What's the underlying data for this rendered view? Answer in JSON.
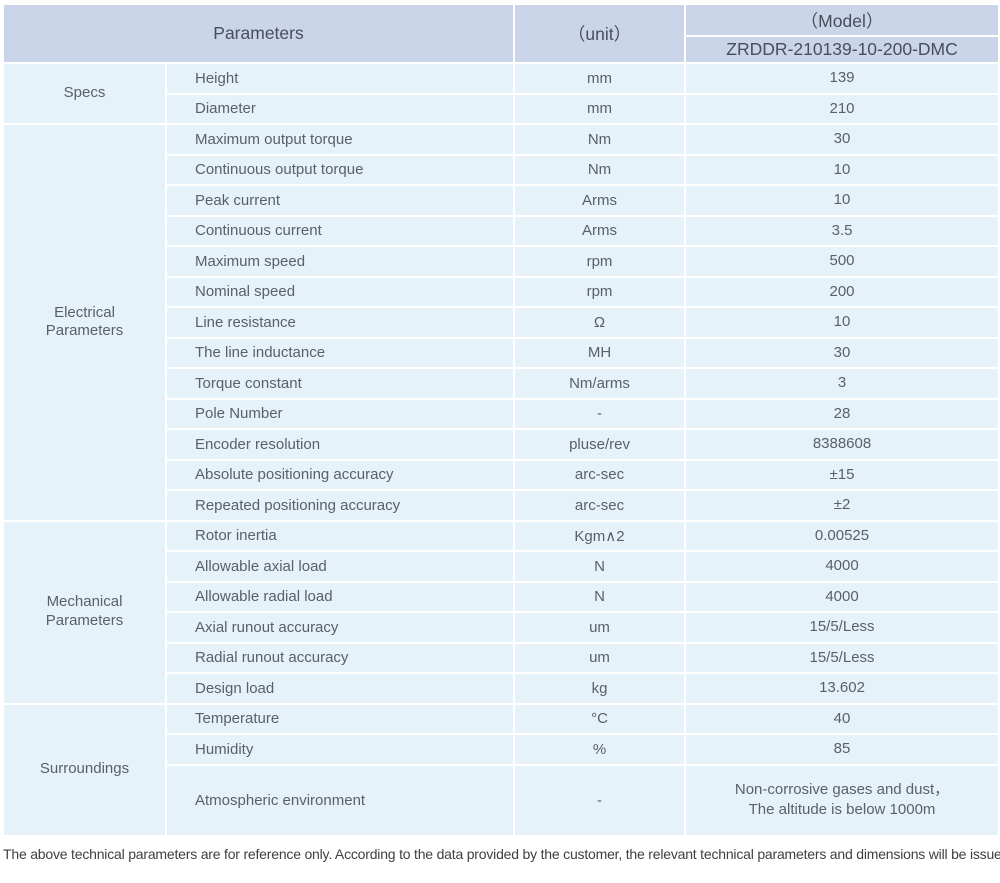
{
  "header": {
    "parameters_label": "Parameters",
    "unit_label": "（unit）",
    "model_label": "（Model）",
    "model_number": "ZRDDR-210139-10-200-DMC"
  },
  "colors": {
    "header_bg": "#cbd5e9",
    "cell_bg": "#e6f2fa",
    "grid": "#ffffff",
    "body_text": "#5a6067",
    "header_text": "#474e5c"
  },
  "sections": [
    {
      "group": "Specs",
      "rows": [
        {
          "label": "Height",
          "unit": "mm",
          "value": "139"
        },
        {
          "label": "Diameter",
          "unit": "mm",
          "value": "210"
        }
      ]
    },
    {
      "group": "Electrical Parameters",
      "rows": [
        {
          "label": "Maximum output torque",
          "unit": "Nm",
          "value": "30"
        },
        {
          "label": "Continuous output torque",
          "unit": "Nm",
          "value": "10"
        },
        {
          "label": "Peak current",
          "unit": "Arms",
          "value": "10"
        },
        {
          "label": "Continuous current",
          "unit": "Arms",
          "value": "3.5"
        },
        {
          "label": "Maximum speed",
          "unit": "rpm",
          "value": "500"
        },
        {
          "label": "Nominal speed",
          "unit": "rpm",
          "value": "200"
        },
        {
          "label": "Line resistance",
          "unit": "Ω",
          "value": "10"
        },
        {
          "label": "The line inductance",
          "unit": "MH",
          "value": "30"
        },
        {
          "label": "Torque constant",
          "unit": "Nm/arms",
          "value": "3"
        },
        {
          "label": "Pole Number",
          "unit": "-",
          "value": "28"
        },
        {
          "label": "Encoder resolution",
          "unit": "pluse/rev",
          "value": "8388608"
        },
        {
          "label": "Absolute positioning accuracy",
          "unit": "arc-sec",
          "value": "±15"
        },
        {
          "label": "Repeated positioning accuracy",
          "unit": "arc-sec",
          "value": "±2"
        }
      ]
    },
    {
      "group": "Mechanical Parameters",
      "rows": [
        {
          "label": "Rotor inertia",
          "unit": "Kgm∧2",
          "value": "0.00525"
        },
        {
          "label": "Allowable axial load",
          "unit": "N",
          "value": "4000"
        },
        {
          "label": "Allowable radial load",
          "unit": "N",
          "value": "4000"
        },
        {
          "label": "Axial runout accuracy",
          "unit": "um",
          "value": "15/5/Less"
        },
        {
          "label": "Radial runout accuracy",
          "unit": "um",
          "value": "15/5/Less"
        },
        {
          "label": "Design load",
          "unit": "kg",
          "value": "13.602"
        }
      ]
    },
    {
      "group": "Surroundings",
      "rows": [
        {
          "label": "Temperature",
          "unit": "°C",
          "value": "40"
        },
        {
          "label": "Humidity",
          "unit": "%",
          "value": "85"
        },
        {
          "label": "Atmospheric environment",
          "unit": "-",
          "value": "Non-corrosive gases and dust，\nThe altitude is below 1000m",
          "tall": true
        }
      ]
    }
  ],
  "footer": {
    "note": "The above technical parameters are for reference only. According to the data provided by the customer, the relevant technical parameters and dimensions will be issued."
  }
}
